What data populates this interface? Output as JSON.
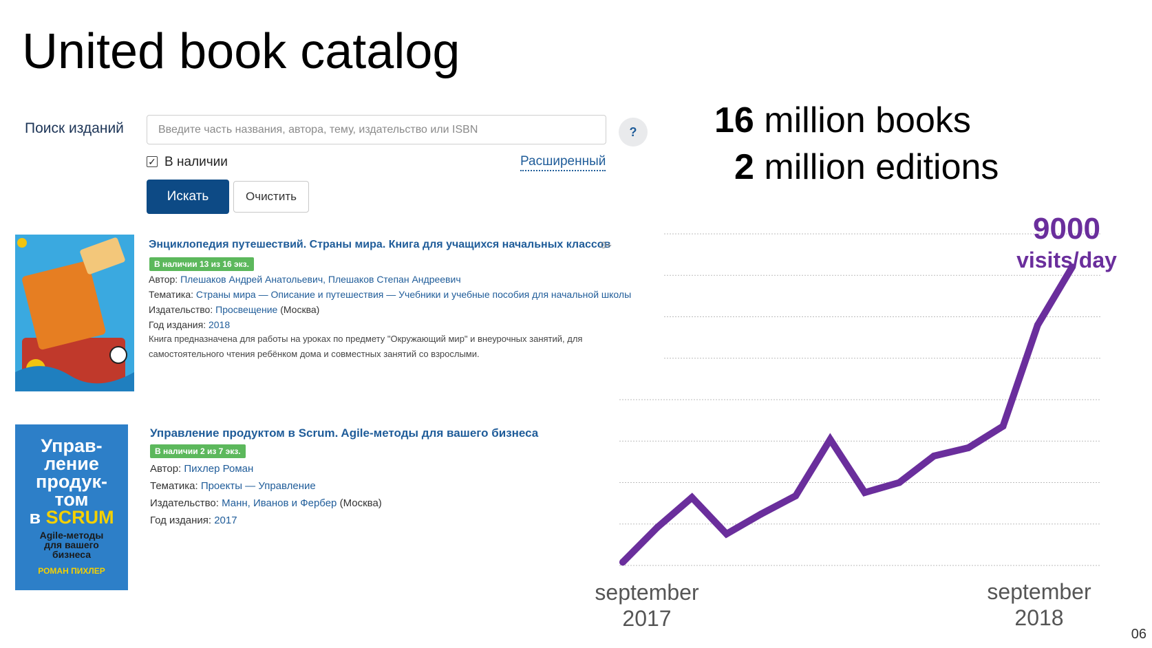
{
  "slide": {
    "title": "United book catalog",
    "number": "06"
  },
  "search": {
    "label": "Поиск изданий",
    "placeholder": "Введите часть названия, автора, тему, издательство или ISBN",
    "help_label": "?",
    "available_label": "В наличии",
    "available_checked": true,
    "advanced_label": "Расширенный",
    "search_button": "Искать",
    "clear_button": "Очистить"
  },
  "results": [
    {
      "title": "Энциклопедия путешествий. Страны мира. Книга для учащихся начальных классов",
      "age": "0+",
      "availability": "В наличии 13 из 16 экз.",
      "author_label": "Автор:",
      "author": "Плешаков Андрей Анатольевич, Плешаков Степан Андреевич",
      "topic_label": "Тематика:",
      "topic": "Страны мира — Описание и путешествия — Учебники и учебные пособия для начальной школы",
      "publisher_label": "Издательство:",
      "publisher": "Просвещение",
      "publisher_city": "(Москва)",
      "year_label": "Год издания:",
      "year": "2018",
      "description": "Книга предназначена для работы на уроках по предмету \"Окружающий мир\" и внеурочных занятий, для самостоятельного чтения ребёнком дома и совместных занятий со взрослыми."
    },
    {
      "title": "Управление продуктом в Scrum. Agile-методы для вашего бизнеса",
      "availability": "В наличии 2 из 7 экз.",
      "author_label": "Автор:",
      "author": "Пихлер Роман",
      "topic_label": "Тематика:",
      "topic": "Проекты — Управление",
      "publisher_label": "Издательство:",
      "publisher": "Манн, Иванов и Фербер",
      "publisher_city": "(Москва)",
      "year_label": "Год издания:",
      "year": "2017",
      "cover": {
        "line1": "Управ-",
        "line2": "ление",
        "line3": "продук-",
        "line4": "том",
        "line5_prefix": "в",
        "line5_word": "SCRUM",
        "sub1": "Agile-методы",
        "sub2": "для вашего",
        "sub3": "бизнеса",
        "author": "РОМАН ПИХЛЕР"
      }
    }
  ],
  "stats": {
    "books_num": "16",
    "books_text": "million books",
    "editions_num": "2",
    "editions_text": "million editions"
  },
  "chart_data": {
    "type": "line",
    "series_color": "#6a2e9c",
    "peak_value_label": "9000",
    "peak_unit_label": "visits/day",
    "x_tick_labels": [
      "september\n2017",
      "september\n2018"
    ],
    "points": [
      {
        "x": 0,
        "y": 100
      },
      {
        "x": 1,
        "y": 1150
      },
      {
        "x": 2,
        "y": 2050
      },
      {
        "x": 3,
        "y": 950
      },
      {
        "x": 4,
        "y": 1550
      },
      {
        "x": 5,
        "y": 2100
      },
      {
        "x": 6,
        "y": 3800
      },
      {
        "x": 7,
        "y": 2200
      },
      {
        "x": 8,
        "y": 2500
      },
      {
        "x": 9,
        "y": 3300
      },
      {
        "x": 10,
        "y": 3550
      },
      {
        "x": 11,
        "y": 4200
      },
      {
        "x": 12,
        "y": 7250
      },
      {
        "x": 13,
        "y": 9000
      }
    ],
    "ylim": [
      0,
      10000
    ],
    "grid": true
  }
}
